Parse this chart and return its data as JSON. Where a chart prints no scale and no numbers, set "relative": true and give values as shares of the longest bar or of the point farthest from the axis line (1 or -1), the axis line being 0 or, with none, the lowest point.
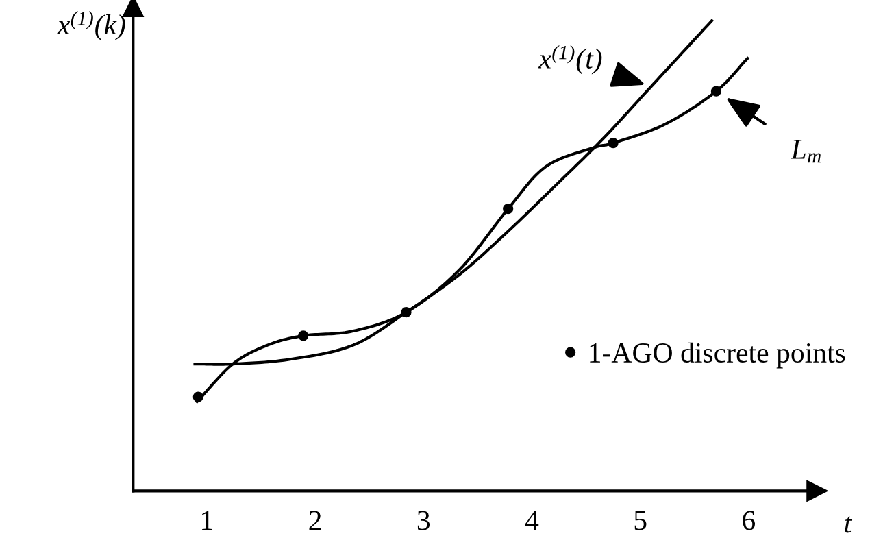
{
  "chart_data": {
    "type": "line",
    "relative": true,
    "ylabel": "x$^{(1)}$(k)",
    "xlabel": "t",
    "xlim": [
      0.32,
      6.63
    ],
    "xticks": [
      1,
      2,
      3,
      4,
      5,
      6
    ],
    "grid": false,
    "legend": "right",
    "line_style": "solid",
    "series": [
      {
        "name": "x$^{(1)}$(t)",
        "type": "line",
        "color": "#000000",
        "marker": "none",
        "x": [
          0.89,
          1.24,
          1.77,
          2.35,
          2.84,
          3.33,
          3.77,
          4.22,
          4.66,
          5.1,
          5.66
        ],
        "values": [
          0.27,
          0.27,
          0.28,
          0.31,
          0.38,
          0.46,
          0.55,
          0.65,
          0.75,
          0.86,
          1.0
        ]
      },
      {
        "name": "L$_{m}$",
        "type": "line",
        "color": "#000000",
        "marker": "none",
        "x": [
          0.91,
          1.24,
          1.56,
          1.89,
          2.35,
          2.84,
          3.33,
          3.78,
          4.13,
          4.57,
          4.75,
          5.23,
          5.7,
          5.99
        ],
        "values": [
          0.19,
          0.27,
          0.31,
          0.33,
          0.34,
          0.38,
          0.47,
          0.6,
          0.69,
          0.73,
          0.74,
          0.78,
          0.85,
          0.92
        ]
      },
      {
        "name": "1-AGO discrete points",
        "type": "scatter",
        "color": "#000000",
        "marker": "circle",
        "x": [
          0.92,
          1.89,
          2.84,
          3.78,
          4.75,
          5.7
        ],
        "values": [
          0.2,
          0.33,
          0.38,
          0.6,
          0.74,
          0.85
        ]
      }
    ]
  }
}
